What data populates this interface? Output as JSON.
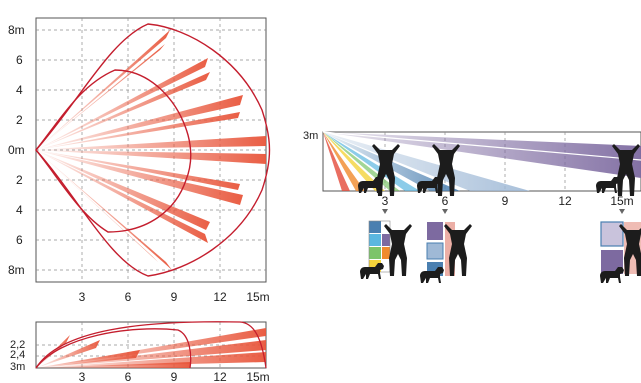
{
  "top_view": {
    "y_labels": [
      "8m",
      "6",
      "4",
      "2",
      "0m",
      "2",
      "4",
      "6",
      "8m"
    ],
    "x_labels": [
      "3",
      "6",
      "9",
      "12",
      "15m"
    ]
  },
  "side_view": {
    "y_labels": [
      "2,2",
      "2,4",
      "3m"
    ],
    "x_labels": [
      "3",
      "6",
      "9",
      "12",
      "15m"
    ]
  },
  "vertical_view": {
    "height_label": "3m",
    "x_labels": [
      "3",
      "6",
      "9",
      "12",
      "15m"
    ]
  },
  "colors": {
    "beam": "#e8553a",
    "outline": "#c41e2e",
    "grid": "#8c8c8c",
    "purple": "#7d6aa0",
    "blue": "#4a7fb0",
    "silhouette": "#1c1c1c"
  }
}
